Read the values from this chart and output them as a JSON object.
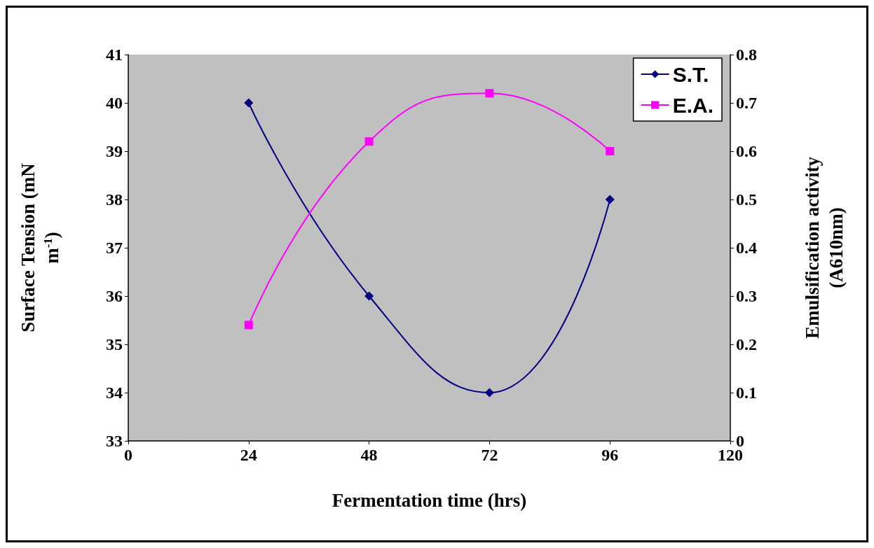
{
  "chart_data": {
    "type": "line",
    "xlabel": "Fermentation time (hrs)",
    "ylabel": "Surface Tension (mN m$^{-1}$)",
    "y2label": "Emulsification activity (A610nm)",
    "x": [
      24,
      48,
      72,
      96
    ],
    "series": [
      {
        "name": "S.T.",
        "color": "#000080",
        "values": [
          40,
          36,
          34,
          38
        ],
        "marker": "diamond"
      },
      {
        "name": "E.A.",
        "color": "#ff00ff",
        "values": [
          0.24,
          0.62,
          0.72,
          0.6
        ],
        "marker": "square",
        "axis": "y2"
      }
    ],
    "xlim": [
      0,
      120
    ],
    "xticks": [
      0,
      24,
      48,
      72,
      96,
      120
    ],
    "ylim": [
      33,
      41
    ],
    "yticks": [
      33,
      34,
      35,
      36,
      37,
      38,
      39,
      40,
      41
    ],
    "y2lim": [
      0,
      0.8
    ],
    "y2ticks": [
      0,
      0.1,
      0.2,
      0.3,
      0.4,
      0.5,
      0.6,
      0.7,
      0.8
    ],
    "grid": false,
    "legend": "top right"
  }
}
